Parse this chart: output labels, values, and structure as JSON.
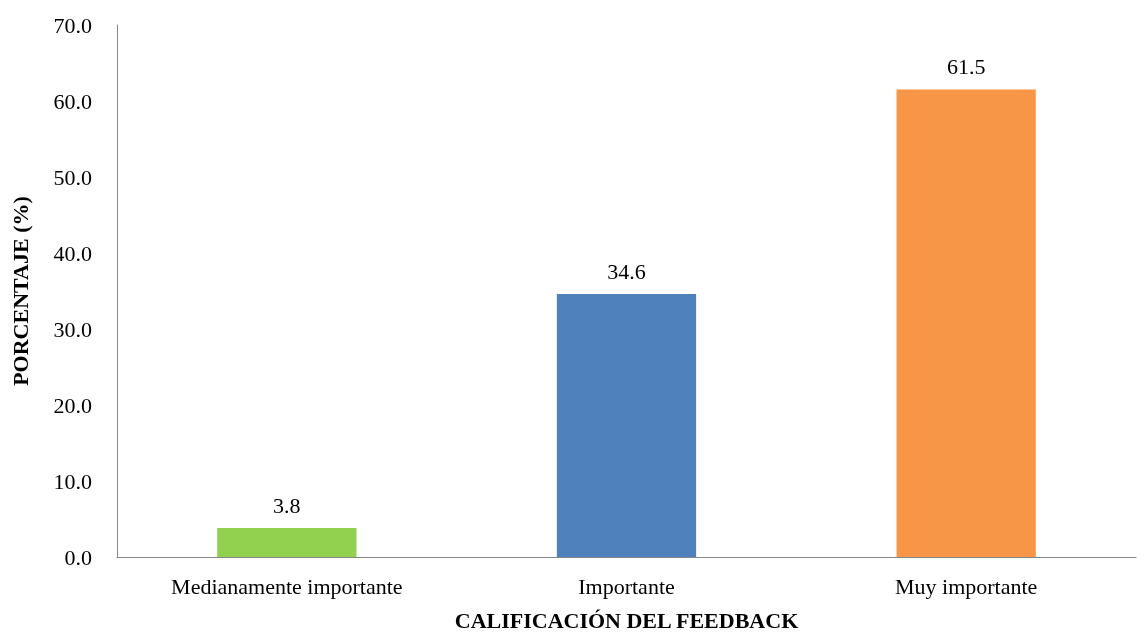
{
  "chart_data": {
    "type": "bar",
    "xlabel": "CALIFICACIÓN DEL FEEDBACK",
    "ylabel": "PORCENTAJE (%)",
    "categories": [
      "Medianamente importante",
      "Importante",
      "Muy importante"
    ],
    "values": [
      3.8,
      34.6,
      61.5
    ],
    "colors": [
      "#92d050",
      "#4f81bd",
      "#f79646"
    ],
    "ylim": [
      0,
      70
    ],
    "yticks": [
      {
        "value": 0,
        "label": "0.0"
      },
      {
        "value": 10,
        "label": "10.0"
      },
      {
        "value": 20,
        "label": "20.0"
      },
      {
        "value": 30,
        "label": "30.0"
      },
      {
        "value": 40,
        "label": "40.0"
      },
      {
        "value": 50,
        "label": "50.0"
      },
      {
        "value": 60,
        "label": "60.0"
      },
      {
        "value": 70,
        "label": "70.0"
      }
    ],
    "data_labels": true,
    "grid": false
  }
}
